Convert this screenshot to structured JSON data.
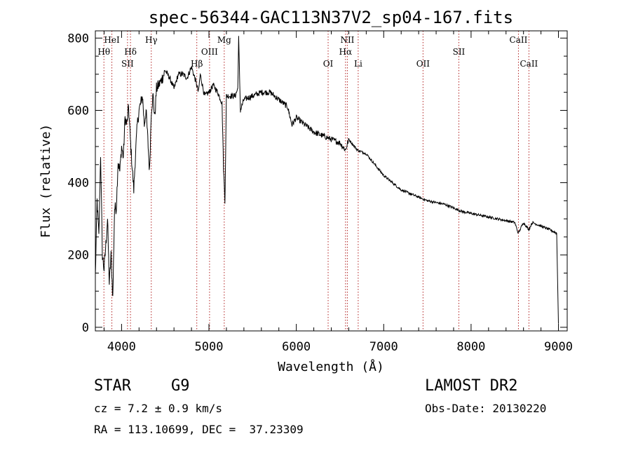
{
  "chart_data": {
    "type": "line",
    "title": "spec-56344-GAC113N37V2_sp04-167.fits",
    "xlabel": "Wavelength (Å)",
    "ylabel": "Flux (relative)",
    "xlim": [
      3700,
      9100
    ],
    "ylim": [
      -10,
      820
    ],
    "x_major_ticks": [
      4000,
      5000,
      6000,
      7000,
      8000,
      9000
    ],
    "x_tick_labels": [
      "4000",
      "5000",
      "6000",
      "7000",
      "8000",
      "9000"
    ],
    "y_major_ticks": [
      0,
      200,
      400,
      600,
      800
    ],
    "y_tick_labels": [
      "0",
      "200",
      "400",
      "600",
      "800"
    ],
    "grid": false,
    "line_color": "#000000",
    "marker_color": "#b22222",
    "series": [
      {
        "x": [
          3700,
          3720,
          3740,
          3760,
          3780,
          3800,
          3820,
          3840,
          3860,
          3880,
          3900,
          3920,
          3940,
          3960,
          3980,
          4000,
          4020,
          4040,
          4060,
          4080,
          4100,
          4120,
          4140,
          4160,
          4180,
          4200,
          4220,
          4240,
          4260,
          4280,
          4300,
          4320,
          4340,
          4360,
          4380,
          4400,
          4450,
          4500,
          4550,
          4600,
          4650,
          4700,
          4750,
          4800,
          4850,
          4880,
          4900,
          4950,
          5000,
          5050,
          5100,
          5150,
          5167,
          5183,
          5200,
          5250,
          5300,
          5330,
          5340,
          5360,
          5400,
          5500,
          5600,
          5700,
          5800,
          5900,
          5950,
          6000,
          6100,
          6200,
          6300,
          6400,
          6500,
          6563,
          6600,
          6700,
          6800,
          6900,
          7000,
          7100,
          7200,
          7300,
          7400,
          7500,
          7600,
          7700,
          7800,
          7900,
          8000,
          8100,
          8200,
          8300,
          8400,
          8500,
          8540,
          8600,
          8660,
          8700,
          8800,
          8900,
          8980,
          9000
        ],
        "y": [
          140,
          350,
          250,
          480,
          200,
          160,
          230,
          300,
          120,
          200,
          80,
          330,
          330,
          460,
          430,
          500,
          470,
          580,
          560,
          610,
          520,
          450,
          380,
          480,
          560,
          600,
          620,
          640,
          560,
          600,
          520,
          430,
          600,
          640,
          580,
          660,
          680,
          710,
          690,
          660,
          700,
          700,
          690,
          720,
          680,
          650,
          700,
          640,
          650,
          670,
          650,
          620,
          440,
          350,
          640,
          640,
          640,
          660,
          800,
          600,
          630,
          640,
          650,
          650,
          630,
          610,
          560,
          580,
          560,
          540,
          530,
          520,
          510,
          490,
          520,
          490,
          480,
          450,
          420,
          400,
          380,
          370,
          360,
          350,
          345,
          340,
          330,
          320,
          315,
          310,
          305,
          300,
          295,
          290,
          260,
          290,
          270,
          290,
          280,
          270,
          260,
          10
        ]
      }
    ],
    "line_markers": [
      {
        "label": "Hθ",
        "x": 3798,
        "row": 2
      },
      {
        "label": "HeI",
        "x": 3889,
        "row": 1
      },
      {
        "label": "SII",
        "x": 4068,
        "row": 3
      },
      {
        "label": "Hδ",
        "x": 4102,
        "row": 2
      },
      {
        "label": "Hγ",
        "x": 4340,
        "row": 1
      },
      {
        "label": "Hβ",
        "x": 4861,
        "row": 3
      },
      {
        "label": "OIII",
        "x": 5007,
        "row": 2
      },
      {
        "label": "Mg",
        "x": 5175,
        "row": 1
      },
      {
        "label": "OI",
        "x": 6364,
        "row": 3
      },
      {
        "label": "NII",
        "x": 6584,
        "row": 1
      },
      {
        "label": "Hα",
        "x": 6563,
        "row": 2
      },
      {
        "label": "Li",
        "x": 6708,
        "row": 3
      },
      {
        "label": "OII",
        "x": 7450,
        "row": 3
      },
      {
        "label": "SII",
        "x": 7860,
        "row": 2
      },
      {
        "label": "CaII",
        "x": 8542,
        "row": 1
      },
      {
        "label": "CaII",
        "x": 8662,
        "row": 3
      }
    ]
  },
  "info": {
    "object_class": "STAR",
    "subclass": "G9",
    "redshift_line": "cz = 7.2 ± 0.9 km/s",
    "coords_line": "RA = 113.10699, DEC =  37.23309",
    "survey": "LAMOST DR2",
    "obs_date_line": "Obs-Date: 20130220"
  }
}
